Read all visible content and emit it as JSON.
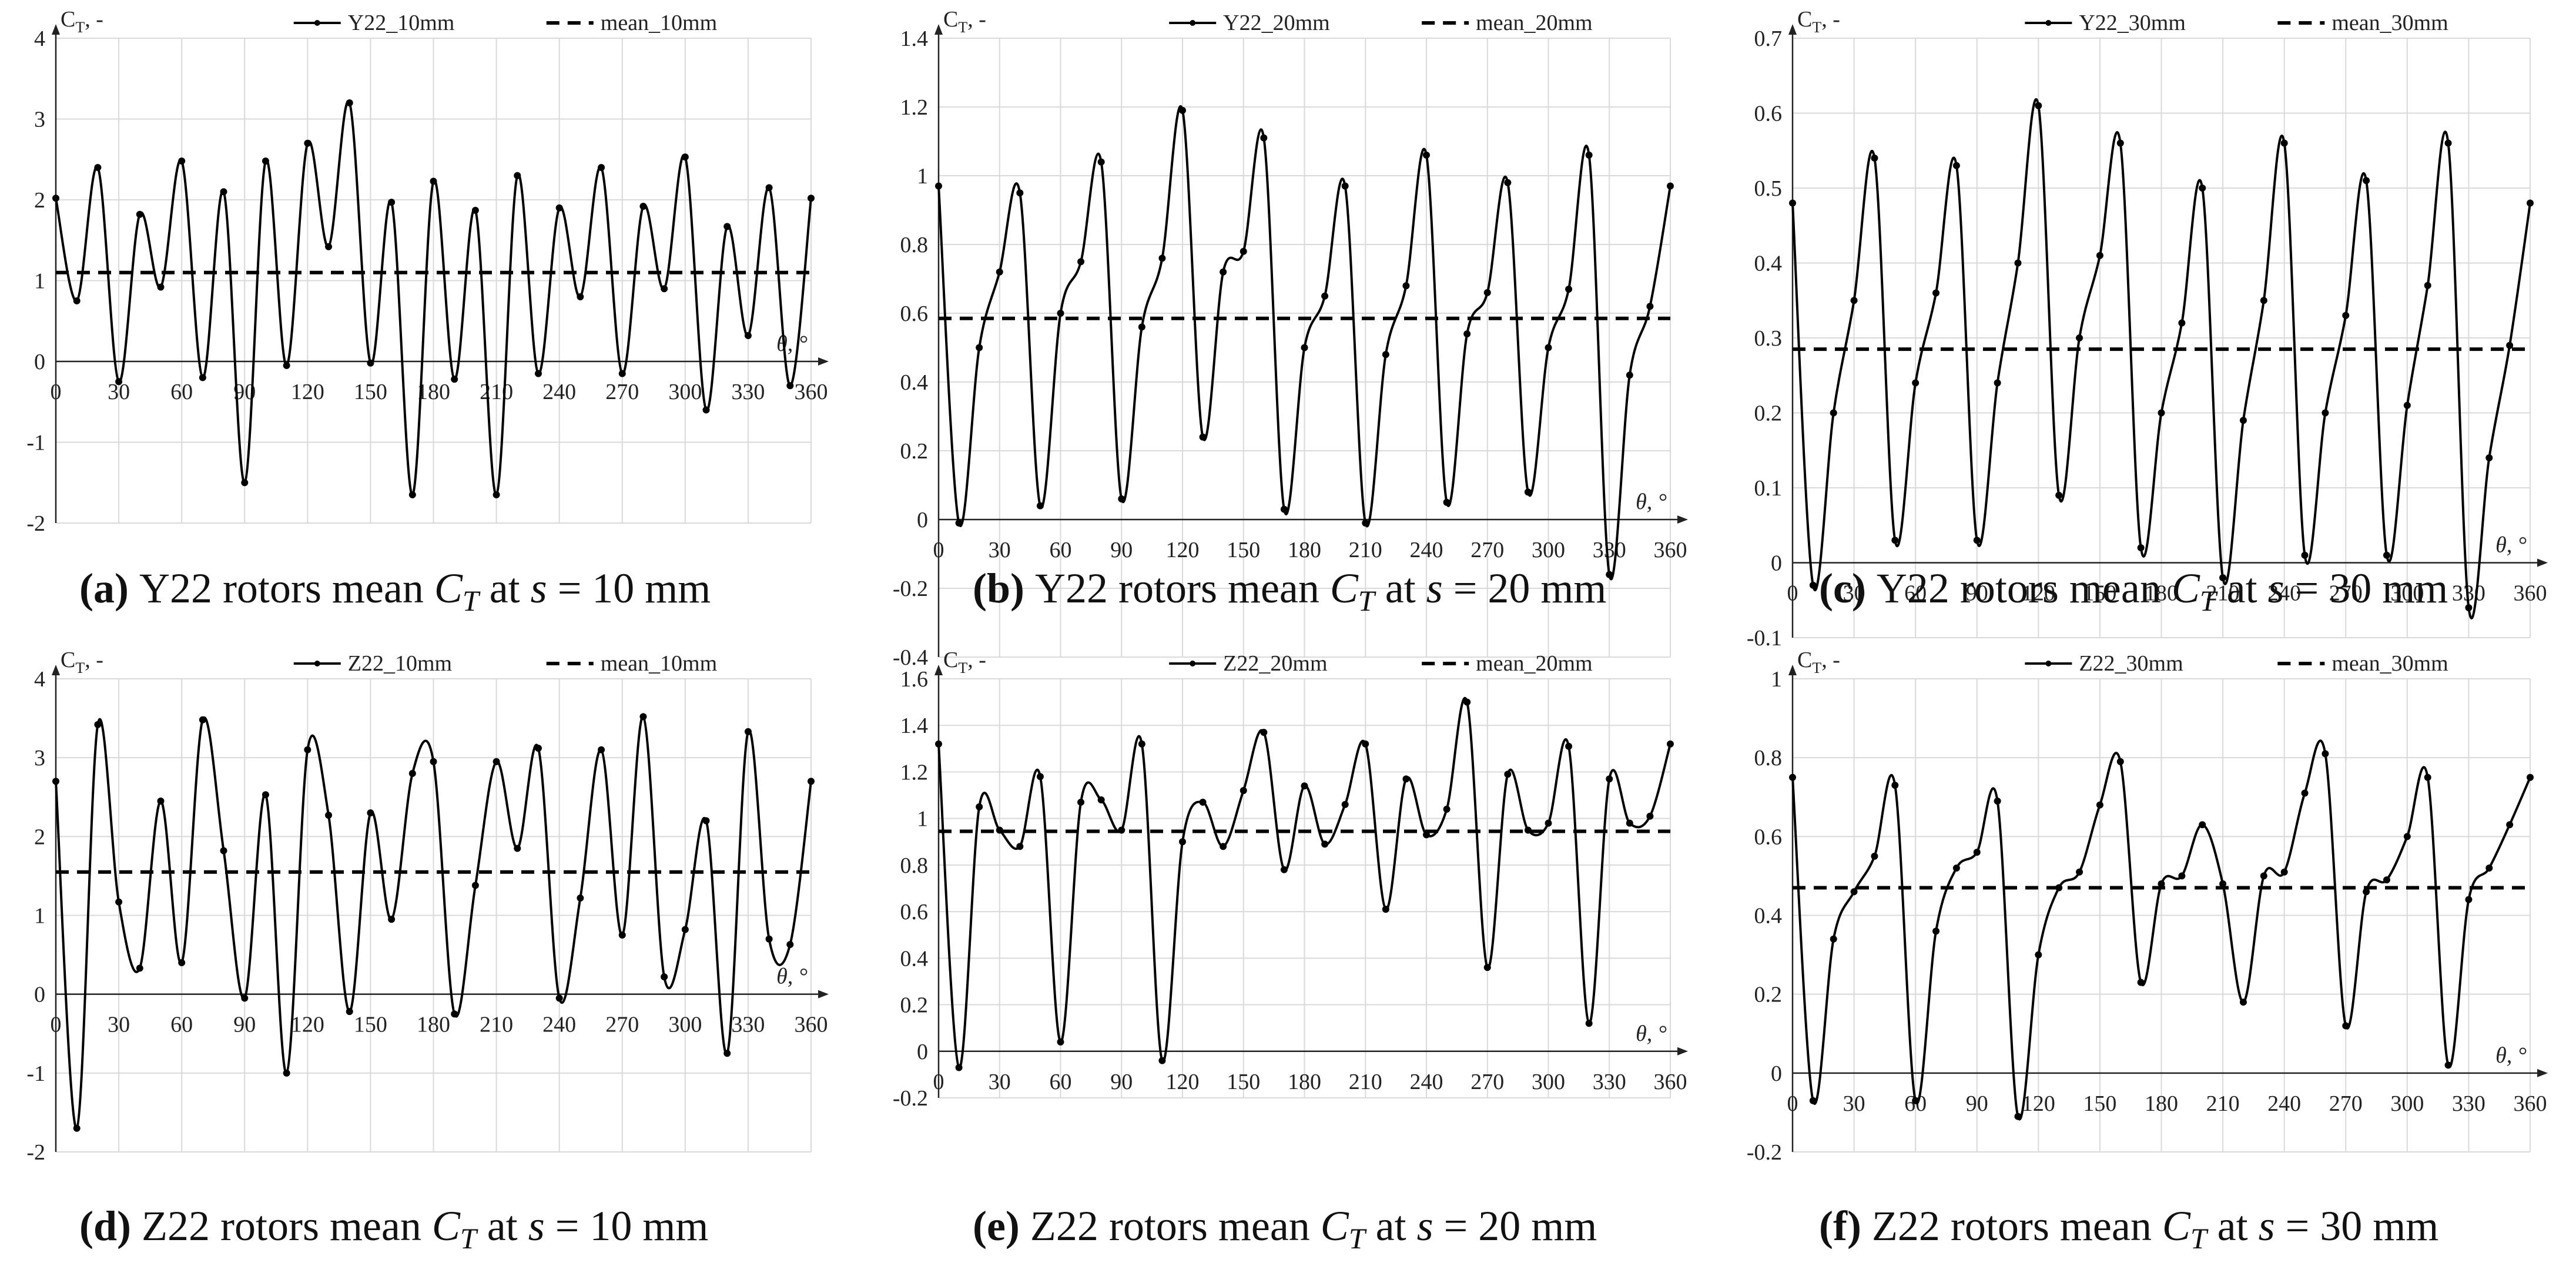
{
  "chart_data": [
    {
      "type": "line",
      "panel": "a",
      "caption_label": "(a)",
      "caption_text": "Y22 rotors mean",
      "caption_var": "C",
      "caption_sub": "T",
      "caption_at": "at",
      "caption_s": "s",
      "caption_eq": "= 10 mm",
      "ylabel": "C",
      "ylabel_sub": "T",
      "ylabel_unit": ", -",
      "xlabel": "θ, °",
      "ylim": [
        -2,
        4
      ],
      "yticks": [
        "-2",
        "-1",
        "0",
        "1",
        "2",
        "3",
        "4"
      ],
      "xlim": [
        0,
        360
      ],
      "xticks": [
        "0",
        "30",
        "60",
        "90",
        "120",
        "150",
        "180",
        "210",
        "240",
        "270",
        "300",
        "330",
        "360"
      ],
      "legend": [
        "Y22_10mm",
        "mean_10mm"
      ],
      "mean": 1.1,
      "x": [
        0,
        10,
        20,
        30,
        40,
        50,
        60,
        70,
        80,
        90,
        100,
        110,
        120,
        130,
        140,
        150,
        160,
        170,
        180,
        190,
        200,
        210,
        220,
        230,
        240,
        250,
        260,
        270,
        280,
        290,
        300,
        310,
        320,
        330,
        340,
        350,
        360
      ],
      "values": [
        2.02,
        0.75,
        2.4,
        -0.25,
        1.82,
        0.92,
        2.48,
        -0.2,
        2.1,
        -1.5,
        2.48,
        -0.05,
        2.7,
        1.42,
        3.2,
        -0.02,
        1.97,
        -1.65,
        2.23,
        -0.22,
        1.87,
        -1.65,
        2.3,
        -0.15,
        1.9,
        0.8,
        2.4,
        -0.15,
        1.92,
        0.9,
        2.53,
        -0.6,
        1.67,
        0.32,
        2.15,
        -0.3,
        2.02
      ]
    },
    {
      "type": "line",
      "panel": "b",
      "caption_label": "(b)",
      "caption_text": "Y22 rotors mean",
      "caption_var": "C",
      "caption_sub": "T",
      "caption_at": "at",
      "caption_s": "s",
      "caption_eq": "= 20 mm",
      "ylabel": "C",
      "ylabel_sub": "T",
      "ylabel_unit": ", -",
      "xlabel": "θ, °",
      "ylim": [
        -0.4,
        1.4
      ],
      "yticks": [
        "-0.4",
        "-0.2",
        "0",
        "0.2",
        "0.4",
        "0.6",
        "0.8",
        "1",
        "1.2",
        "1.4"
      ],
      "xlim": [
        0,
        360
      ],
      "xticks": [
        "0",
        "30",
        "60",
        "90",
        "120",
        "150",
        "180",
        "210",
        "240",
        "270",
        "300",
        "330",
        "360"
      ],
      "legend": [
        "Y22_20mm",
        "mean_20mm"
      ],
      "mean": 0.585,
      "x": [
        0,
        10,
        20,
        30,
        40,
        50,
        60,
        70,
        80,
        90,
        100,
        110,
        120,
        130,
        140,
        150,
        160,
        170,
        180,
        190,
        200,
        210,
        220,
        230,
        240,
        250,
        260,
        270,
        280,
        290,
        300,
        310,
        320,
        330,
        340,
        350,
        360
      ],
      "values": [
        0.97,
        -0.01,
        0.5,
        0.72,
        0.95,
        0.04,
        0.6,
        0.75,
        1.04,
        0.06,
        0.56,
        0.76,
        1.19,
        0.24,
        0.72,
        0.78,
        1.11,
        0.03,
        0.5,
        0.65,
        0.97,
        -0.01,
        0.48,
        0.68,
        1.06,
        0.05,
        0.54,
        0.66,
        0.98,
        0.08,
        0.5,
        0.67,
        1.06,
        -0.16,
        0.42,
        0.62,
        0.97
      ]
    },
    {
      "type": "line",
      "panel": "c",
      "caption_label": "(c)",
      "caption_text": "Y22 rotors mean",
      "caption_var": "C",
      "caption_sub": "T",
      "caption_at": "at",
      "caption_s": "s",
      "caption_eq": "= 30 mm",
      "ylabel": "C",
      "ylabel_sub": "T",
      "ylabel_unit": ", -",
      "xlabel": "θ, °",
      "ylim": [
        -0.1,
        0.7
      ],
      "yticks": [
        "-0.1",
        "0",
        "0.1",
        "0.2",
        "0.3",
        "0.4",
        "0.5",
        "0.6",
        "0.7"
      ],
      "xlim": [
        0,
        360
      ],
      "xticks": [
        "0",
        "30",
        "60",
        "90",
        "120",
        "150",
        "180",
        "210",
        "240",
        "270",
        "300",
        "330",
        "360"
      ],
      "legend": [
        "Y22_30mm",
        "mean_30mm"
      ],
      "mean": 0.285,
      "x": [
        0,
        10,
        20,
        30,
        40,
        50,
        60,
        70,
        80,
        90,
        100,
        110,
        120,
        130,
        140,
        150,
        160,
        170,
        180,
        190,
        200,
        210,
        220,
        230,
        240,
        250,
        260,
        270,
        280,
        290,
        300,
        310,
        320,
        330,
        340,
        350,
        360
      ],
      "values": [
        0.48,
        -0.03,
        0.2,
        0.35,
        0.54,
        0.03,
        0.24,
        0.36,
        0.53,
        0.03,
        0.24,
        0.4,
        0.61,
        0.09,
        0.3,
        0.41,
        0.56,
        0.02,
        0.2,
        0.32,
        0.5,
        -0.02,
        0.19,
        0.35,
        0.56,
        0.01,
        0.2,
        0.33,
        0.51,
        0.01,
        0.21,
        0.37,
        0.56,
        -0.06,
        0.14,
        0.29,
        0.48
      ]
    },
    {
      "type": "line",
      "panel": "d",
      "caption_label": "(d)",
      "caption_text": "Z22 rotors mean",
      "caption_var": "C",
      "caption_sub": "T",
      "caption_at": "at",
      "caption_s": "s",
      "caption_eq": "= 10 mm",
      "ylabel": "C",
      "ylabel_sub": "T",
      "ylabel_unit": ", -",
      "xlabel": "θ, °",
      "ylim": [
        -2,
        4
      ],
      "yticks": [
        "-2",
        "-1",
        "0",
        "1",
        "2",
        "3",
        "4"
      ],
      "xlim": [
        0,
        360
      ],
      "xticks": [
        "0",
        "30",
        "60",
        "90",
        "120",
        "150",
        "180",
        "210",
        "240",
        "270",
        "300",
        "330",
        "360"
      ],
      "legend": [
        "Z22_10mm",
        "mean_10mm"
      ],
      "mean": 1.55,
      "x": [
        0,
        10,
        20,
        30,
        40,
        50,
        60,
        70,
        80,
        90,
        100,
        110,
        120,
        130,
        140,
        150,
        160,
        170,
        180,
        190,
        200,
        210,
        220,
        230,
        240,
        250,
        260,
        270,
        280,
        290,
        300,
        310,
        320,
        330,
        340,
        350,
        360
      ],
      "values": [
        2.7,
        -1.7,
        3.42,
        1.17,
        0.33,
        2.45,
        0.4,
        3.48,
        1.82,
        -0.05,
        2.53,
        -1.0,
        3.1,
        2.27,
        -0.22,
        2.3,
        0.95,
        2.8,
        2.95,
        -0.25,
        1.38,
        2.95,
        1.85,
        3.12,
        -0.05,
        1.22,
        3.1,
        0.75,
        3.52,
        0.22,
        0.82,
        2.2,
        -0.75,
        3.33,
        0.7,
        0.63,
        2.7
      ]
    },
    {
      "type": "line",
      "panel": "e",
      "caption_label": "(e)",
      "caption_text": "Z22 rotors mean",
      "caption_var": "C",
      "caption_sub": "T",
      "caption_at": "at",
      "caption_s": "s",
      "caption_eq": "= 20 mm",
      "ylabel": "C",
      "ylabel_sub": "T",
      "ylabel_unit": ", -",
      "xlabel": "θ, °",
      "ylim": [
        -0.2,
        1.6
      ],
      "yticks": [
        "-0.2",
        "0",
        "0.2",
        "0.4",
        "0.6",
        "0.8",
        "1",
        "1.2",
        "1.4",
        "1.6"
      ],
      "xlim": [
        0,
        360
      ],
      "xticks": [
        "0",
        "30",
        "60",
        "90",
        "120",
        "150",
        "180",
        "210",
        "240",
        "270",
        "300",
        "330",
        "360"
      ],
      "legend": [
        "Z22_20mm",
        "mean_20mm"
      ],
      "mean": 0.945,
      "x": [
        0,
        10,
        20,
        30,
        40,
        50,
        60,
        70,
        80,
        90,
        100,
        110,
        120,
        130,
        140,
        150,
        160,
        170,
        180,
        190,
        200,
        210,
        220,
        230,
        240,
        250,
        260,
        270,
        280,
        290,
        300,
        310,
        320,
        330,
        340,
        350,
        360
      ],
      "values": [
        1.32,
        -0.07,
        1.05,
        0.95,
        0.88,
        1.18,
        0.04,
        1.07,
        1.08,
        0.95,
        1.32,
        -0.04,
        0.9,
        1.07,
        0.88,
        1.12,
        1.37,
        0.78,
        1.14,
        0.89,
        1.06,
        1.32,
        0.61,
        1.17,
        0.93,
        1.04,
        1.5,
        0.36,
        1.19,
        0.95,
        0.98,
        1.31,
        0.12,
        1.17,
        0.98,
        1.01,
        1.32
      ]
    },
    {
      "type": "line",
      "panel": "f",
      "caption_label": "(f)",
      "caption_text": "Z22 rotors mean",
      "caption_var": "C",
      "caption_sub": "T",
      "caption_at": "at",
      "caption_s": "s",
      "caption_eq": "= 30 mm",
      "ylabel": "C",
      "ylabel_sub": "T",
      "ylabel_unit": ", -",
      "xlabel": "θ, °",
      "ylim": [
        -0.2,
        1.0
      ],
      "yticks": [
        "-0.2",
        "0",
        "0.2",
        "0.4",
        "0.6",
        "0.8",
        "1"
      ],
      "xlim": [
        0,
        360
      ],
      "xticks": [
        "0",
        "30",
        "60",
        "90",
        "120",
        "150",
        "180",
        "210",
        "240",
        "270",
        "300",
        "330",
        "360"
      ],
      "legend": [
        "Z22_30mm",
        "mean_30mm"
      ],
      "mean": 0.47,
      "x": [
        0,
        10,
        20,
        30,
        40,
        50,
        60,
        70,
        80,
        90,
        100,
        110,
        120,
        130,
        140,
        150,
        160,
        170,
        180,
        190,
        200,
        210,
        220,
        230,
        240,
        250,
        260,
        270,
        280,
        290,
        300,
        310,
        320,
        330,
        340,
        350,
        360
      ],
      "values": [
        0.75,
        -0.07,
        0.34,
        0.46,
        0.55,
        0.73,
        -0.07,
        0.36,
        0.52,
        0.56,
        0.69,
        -0.11,
        0.3,
        0.47,
        0.51,
        0.68,
        0.79,
        0.23,
        0.48,
        0.5,
        0.63,
        0.48,
        0.18,
        0.5,
        0.51,
        0.71,
        0.81,
        0.12,
        0.46,
        0.49,
        0.6,
        0.75,
        0.02,
        0.44,
        0.52,
        0.63,
        0.75
      ]
    }
  ]
}
